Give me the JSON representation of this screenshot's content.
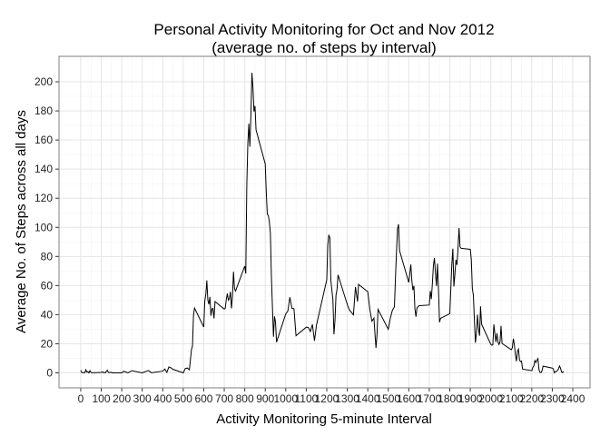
{
  "chart_data": {
    "type": "line",
    "title": "Personal Activity Monitoring for Oct and Nov 2012",
    "subtitle": "(average no. of steps by interval)",
    "x_label": "Activity Monitoring 5-minute Interval",
    "y_label": "Average No. of Steps across all days",
    "color": "#000000",
    "grid": true,
    "xlim": [
      -106,
      2484
    ],
    "ylim": [
      -10.3,
      217.5
    ],
    "xticks": [
      0,
      100,
      200,
      300,
      400,
      500,
      600,
      700,
      800,
      900,
      1000,
      1100,
      1200,
      1300,
      1400,
      1500,
      1600,
      1700,
      1800,
      1900,
      2000,
      2100,
      2200,
      2300,
      2400
    ],
    "yticks": [
      0,
      20,
      40,
      60,
      80,
      100,
      120,
      140,
      160,
      180,
      200
    ],
    "x": [
      0,
      5,
      10,
      15,
      20,
      25,
      30,
      35,
      40,
      45,
      50,
      55,
      100,
      105,
      110,
      115,
      120,
      125,
      130,
      135,
      140,
      145,
      150,
      155,
      200,
      210,
      230,
      250,
      300,
      330,
      345,
      400,
      410,
      420,
      430,
      440,
      450,
      500,
      510,
      520,
      530,
      540,
      545,
      550,
      555,
      600,
      605,
      610,
      615,
      620,
      625,
      630,
      635,
      640,
      645,
      650,
      655,
      700,
      705,
      710,
      715,
      720,
      725,
      730,
      735,
      740,
      745,
      750,
      755,
      800,
      805,
      810,
      815,
      820,
      825,
      830,
      835,
      840,
      845,
      850,
      855,
      900,
      905,
      910,
      915,
      920,
      925,
      930,
      935,
      940,
      945,
      950,
      955,
      1000,
      1010,
      1020,
      1030,
      1040,
      1050,
      1100,
      1110,
      1120,
      1130,
      1140,
      1150,
      1200,
      1205,
      1210,
      1215,
      1220,
      1230,
      1235,
      1240,
      1245,
      1250,
      1255,
      1300,
      1310,
      1330,
      1340,
      1350,
      1355,
      1400,
      1410,
      1420,
      1430,
      1435,
      1440,
      1445,
      1450,
      1500,
      1510,
      1520,
      1530,
      1535,
      1540,
      1545,
      1550,
      1555,
      1600,
      1610,
      1615,
      1620,
      1625,
      1630,
      1635,
      1640,
      1650,
      1700,
      1705,
      1710,
      1715,
      1720,
      1725,
      1730,
      1735,
      1740,
      1745,
      1750,
      1755,
      1800,
      1810,
      1815,
      1820,
      1825,
      1830,
      1835,
      1840,
      1845,
      1850,
      1855,
      1900,
      1905,
      1910,
      1915,
      1920,
      1925,
      1930,
      1935,
      1940,
      1945,
      1950,
      1955,
      2000,
      2005,
      2010,
      2015,
      2020,
      2025,
      2030,
      2035,
      2040,
      2045,
      2050,
      2055,
      2100,
      2105,
      2110,
      2115,
      2120,
      2125,
      2130,
      2135,
      2140,
      2145,
      2150,
      2155,
      2200,
      2205,
      2210,
      2215,
      2220,
      2225,
      2230,
      2235,
      2240,
      2245,
      2250,
      2255,
      2300,
      2305,
      2310,
      2315,
      2320,
      2325,
      2330,
      2335,
      2340,
      2345,
      2350,
      2355
    ],
    "values": [
      1.7,
      0.3,
      0.1,
      0.2,
      0.1,
      2.1,
      0.5,
      0.9,
      0,
      1.5,
      0.3,
      0.1,
      0.3,
      0.7,
      0.2,
      0.3,
      0,
      1.1,
      1.8,
      0.2,
      0.2,
      0.4,
      0.3,
      0,
      0,
      1.1,
      0,
      1.5,
      0,
      1.6,
      0.1,
      1.2,
      2.6,
      0.3,
      4.1,
      3.5,
      2.4,
      0,
      3,
      3.3,
      2.1,
      16,
      18.3,
      39.5,
      44.5,
      31.5,
      49.3,
      53.8,
      63.5,
      50,
      47.1,
      52.2,
      39.3,
      44,
      44.2,
      37.4,
      49,
      43.8,
      44.4,
      50.5,
      54.5,
      49.9,
      51,
      55.7,
      44.3,
      52.3,
      69.5,
      57.8,
      56.2,
      73.4,
      68.2,
      129.4,
      157.5,
      171.2,
      155.4,
      177.3,
      206.2,
      195.9,
      179.6,
      183.4,
      167,
      143.5,
      124,
      109.1,
      108.1,
      103.7,
      95.9,
      66.2,
      45.2,
      24.8,
      38.8,
      35,
      21.1,
      40.6,
      42.4,
      52,
      44.3,
      44.1,
      25.5,
      31.4,
      31.2,
      28.4,
      33.3,
      22,
      33,
      63.9,
      87.7,
      94.8,
      92.8,
      63.4,
      50.2,
      26.5,
      35.7,
      53.4,
      57.4,
      67.3,
      47,
      43.3,
      39.9,
      59,
      49,
      60.8,
      55.8,
      43.6,
      35.5,
      37.6,
      27.2,
      17.1,
      26.1,
      43.6,
      30,
      37.5,
      43,
      45.4,
      65,
      82.9,
      98.7,
      102.1,
      84,
      62.1,
      74.5,
      63.2,
      56.9,
      59.8,
      43.9,
      38.6,
      44.7,
      46.2,
      46.6,
      56.3,
      50.7,
      61.2,
      73.4,
      78.9,
      68.9,
      59.7,
      75.1,
      56.5,
      34.8,
      37.5,
      40.7,
      74.7,
      85.3,
      59.3,
      67.8,
      77.7,
      74.2,
      85.3,
      99.5,
      86.6,
      85.6,
      84.9,
      77.8,
      58,
      53.4,
      36.3,
      20.7,
      27.4,
      40,
      30.2,
      25.5,
      45.7,
      33.5,
      19.6,
      19,
      19.3,
      33.3,
      26.8,
      21.2,
      27.3,
      21.3,
      19.5,
      21.3,
      32.3,
      20.2,
      15.9,
      17.2,
      23.5,
      19.2,
      12.5,
      8,
      14.7,
      16.3,
      8.7,
      7.8,
      8.1,
      2.6,
      1.5,
      3.7,
      4.8,
      8.5,
      7.1,
      8.7,
      9.8,
      2.2,
      0.3,
      0.1,
      1.6,
      4.6,
      3.3,
      2.8,
      0,
      0.8,
      1,
      1.6,
      2.6,
      4.7,
      3.3,
      0.6,
      0.2,
      1.1
    ]
  }
}
